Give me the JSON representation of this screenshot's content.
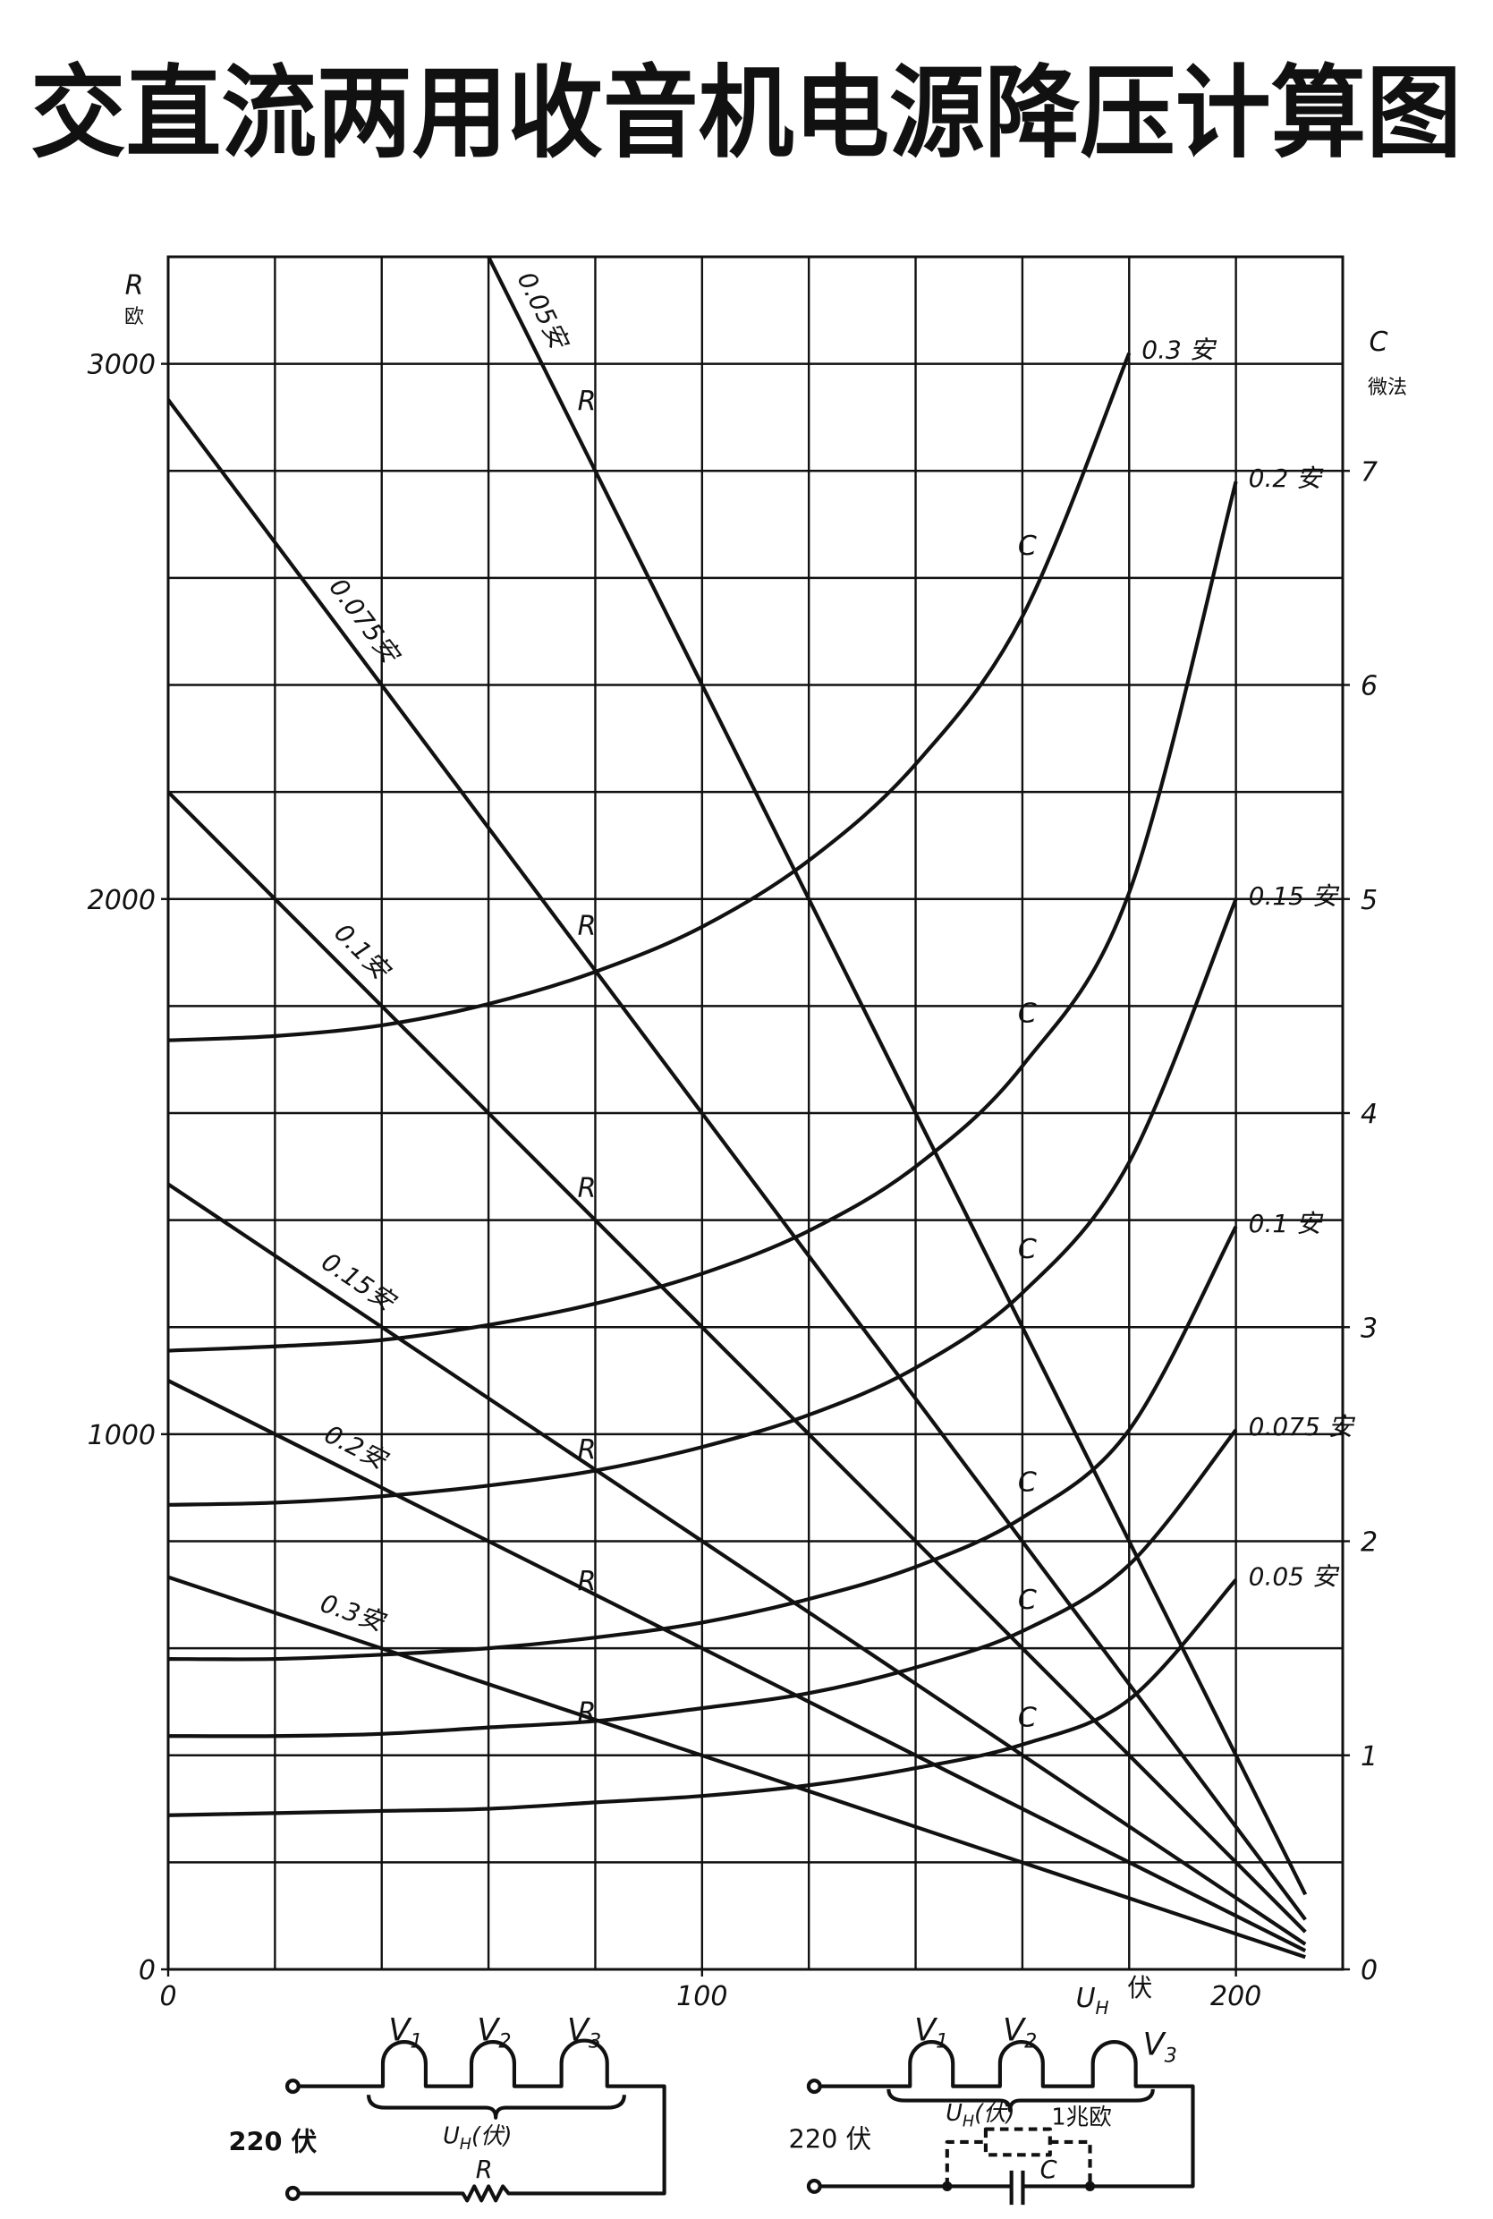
{
  "chart_data": {
    "type": "line",
    "title": "交直流两用收音机电源降压计算图",
    "xlim": [
      0,
      220
    ],
    "ylim": [
      0,
      3200
    ],
    "y2lim": [
      0,
      8
    ],
    "xticks": [
      0,
      100,
      200
    ],
    "yticks": [
      0,
      1000,
      2000,
      3000
    ],
    "y2ticks": [
      0,
      1,
      2,
      3,
      4,
      5,
      6,
      7
    ],
    "xgrid": [
      0,
      20,
      40,
      60,
      80,
      100,
      120,
      140,
      160,
      180,
      200,
      220
    ],
    "ygrid": [
      0,
      200,
      400,
      600,
      800,
      1000,
      1200,
      1400,
      1600,
      1800,
      2000,
      2200,
      2400,
      2600,
      2800,
      3000,
      3200
    ],
    "grid": true,
    "color": "#111111",
    "ylabel": "R",
    "yunit": "欧",
    "y2label": "C",
    "y2unit": "微法",
    "xlabel": "U",
    "xlabel_sub": "H",
    "xunit": "伏",
    "series": [
      {
        "name": "0.05安",
        "curve": "R",
        "x": [
          60,
          213
        ],
        "values": [
          3200,
          140
        ]
      },
      {
        "name": "0.075安",
        "curve": "R",
        "x": [
          0,
          213
        ],
        "values": [
          2933,
          93
        ]
      },
      {
        "name": "0.1安",
        "curve": "R",
        "x": [
          0,
          213
        ],
        "values": [
          2200,
          70
        ]
      },
      {
        "name": "0.15安",
        "curve": "R",
        "x": [
          0,
          213
        ],
        "values": [
          1467,
          47
        ]
      },
      {
        "name": "0.2安",
        "curve": "R",
        "x": [
          0,
          213
        ],
        "values": [
          1100,
          35
        ]
      },
      {
        "name": "0.3安",
        "curve": "R",
        "x": [
          0,
          213
        ],
        "values": [
          733,
          23
        ]
      },
      {
        "name": "0.3 安",
        "curve": "C",
        "axis": "y2",
        "x": [
          0,
          20,
          40,
          60,
          80,
          100,
          120,
          140,
          160,
          180
        ],
        "values": [
          4.34,
          4.36,
          4.41,
          4.51,
          4.66,
          4.87,
          5.18,
          5.63,
          6.32,
          7.55
        ]
      },
      {
        "name": "0.2 安",
        "curve": "C",
        "axis": "y2",
        "x": [
          0,
          20,
          40,
          60,
          80,
          100,
          120,
          140,
          160,
          180,
          200
        ],
        "values": [
          2.89,
          2.91,
          2.94,
          3.01,
          3.11,
          3.25,
          3.45,
          3.75,
          4.22,
          5.03,
          6.95
        ]
      },
      {
        "name": "0.15 安",
        "curve": "C",
        "axis": "y2",
        "x": [
          0,
          20,
          40,
          60,
          80,
          100,
          120,
          140,
          160,
          180,
          200
        ],
        "values": [
          2.17,
          2.18,
          2.21,
          2.26,
          2.33,
          2.44,
          2.59,
          2.81,
          3.16,
          3.77,
          5.0
        ]
      },
      {
        "name": "0.1 安",
        "curve": "C",
        "axis": "y2",
        "x": [
          0,
          20,
          40,
          60,
          80,
          100,
          120,
          140,
          160,
          180,
          200
        ],
        "values": [
          1.45,
          1.45,
          1.47,
          1.5,
          1.55,
          1.62,
          1.73,
          1.88,
          2.11,
          2.52,
          3.47
        ]
      },
      {
        "name": "0.075 安",
        "curve": "C",
        "axis": "y2",
        "x": [
          0,
          20,
          40,
          60,
          80,
          100,
          120,
          140,
          160,
          180,
          200
        ],
        "values": [
          1.09,
          1.09,
          1.1,
          1.13,
          1.16,
          1.22,
          1.29,
          1.41,
          1.58,
          1.89,
          2.52
        ]
      },
      {
        "name": "0.05 安",
        "curve": "C",
        "axis": "y2",
        "x": [
          0,
          20,
          40,
          60,
          80,
          100,
          120,
          140,
          160,
          180,
          200
        ],
        "values": [
          0.72,
          0.73,
          0.74,
          0.75,
          0.78,
          0.81,
          0.86,
          0.94,
          1.05,
          1.26,
          1.82
        ]
      }
    ]
  },
  "circuits": [
    {
      "tubes": [
        {
          "main": "V",
          "sub": "1"
        },
        {
          "main": "V",
          "sub": "2"
        },
        {
          "main": "V",
          "sub": "3"
        }
      ],
      "voltage": {
        "main": "U",
        "sub": "H",
        "unit": "(伏)"
      },
      "source": "220 伏",
      "element": "R"
    },
    {
      "tubes": [
        {
          "main": "V",
          "sub": "1"
        },
        {
          "main": "V",
          "sub": "2"
        },
        {
          "main": "V",
          "sub": "3"
        }
      ],
      "voltage": {
        "main": "U",
        "sub": "H",
        "unit": "(伏)"
      },
      "source": "220 伏",
      "resistor": "1兆欧",
      "element": "C"
    }
  ]
}
